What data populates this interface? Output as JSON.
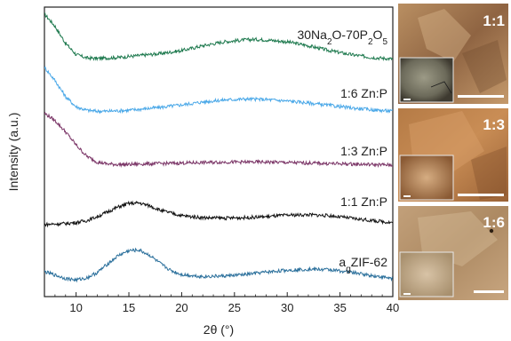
{
  "chart_data": {
    "type": "line",
    "xlabel": "2θ (°)",
    "ylabel": "Intensity (a.u.)",
    "xlim": [
      7,
      40
    ],
    "x_ticks": [
      10,
      15,
      20,
      25,
      30,
      35,
      40
    ],
    "y_ticks_shown": false,
    "grid": false,
    "legend": "none (labels printed next to each curve, right side)",
    "series": [
      {
        "name": "30Na2O-70P2O5",
        "color": "#1f7a4f",
        "offset": 4,
        "x": [
          7,
          8,
          9,
          10,
          11,
          12,
          13,
          14,
          15,
          16,
          18,
          20,
          22,
          24,
          25,
          26,
          27,
          28,
          30,
          32,
          34,
          36,
          38,
          40
        ],
        "y": [
          0.95,
          0.7,
          0.35,
          0.12,
          0.05,
          0.04,
          0.05,
          0.06,
          0.08,
          0.1,
          0.14,
          0.2,
          0.3,
          0.38,
          0.4,
          0.42,
          0.43,
          0.42,
          0.38,
          0.3,
          0.2,
          0.12,
          0.06,
          0.03
        ],
        "label_parts": [
          "30Na",
          "2",
          "O-70P",
          "2",
          "O",
          "5"
        ]
      },
      {
        "name": "1:6 Zn:P",
        "color": "#4aa8e8",
        "offset": 3,
        "x": [
          7,
          8,
          9,
          10,
          11,
          12,
          13,
          14,
          15,
          16,
          18,
          20,
          22,
          24,
          26,
          28,
          30,
          32,
          34,
          36,
          38,
          40
        ],
        "y": [
          0.95,
          0.68,
          0.35,
          0.14,
          0.07,
          0.05,
          0.05,
          0.06,
          0.07,
          0.09,
          0.13,
          0.18,
          0.24,
          0.28,
          0.3,
          0.29,
          0.26,
          0.22,
          0.17,
          0.12,
          0.08,
          0.05
        ],
        "label": "1:6 Zn:P"
      },
      {
        "name": "1:3 Zn:P",
        "color": "#7a3466",
        "offset": 2,
        "x": [
          7,
          8,
          9,
          10,
          11,
          12,
          13,
          14,
          15,
          16,
          18,
          20,
          22,
          24,
          26,
          28,
          30,
          32,
          34,
          36,
          38,
          40
        ],
        "y": [
          1.1,
          0.95,
          0.72,
          0.45,
          0.22,
          0.1,
          0.06,
          0.05,
          0.05,
          0.06,
          0.07,
          0.08,
          0.09,
          0.1,
          0.1,
          0.1,
          0.09,
          0.08,
          0.07,
          0.06,
          0.05,
          0.04
        ],
        "label": "1:3 Zn:P"
      },
      {
        "name": "1:1 Zn:P",
        "color": "#111111",
        "offset": 1,
        "x": [
          7,
          8,
          9,
          10,
          11,
          12,
          13,
          14,
          15,
          16,
          17,
          18,
          20,
          22,
          24,
          26,
          28,
          30,
          32,
          34,
          36,
          38,
          40
        ],
        "y": [
          0.04,
          0.05,
          0.06,
          0.08,
          0.12,
          0.2,
          0.3,
          0.4,
          0.47,
          0.48,
          0.42,
          0.33,
          0.22,
          0.18,
          0.17,
          0.18,
          0.2,
          0.23,
          0.24,
          0.22,
          0.17,
          0.12,
          0.08
        ],
        "label": "1:1 Zn:P"
      },
      {
        "name": "agZIF-62",
        "color": "#2a6f9b",
        "offset": 0,
        "x": [
          7,
          8,
          9,
          10,
          11,
          12,
          13,
          14,
          15,
          16,
          17,
          18,
          19,
          20,
          22,
          24,
          26,
          28,
          30,
          32,
          34,
          36,
          38,
          40
        ],
        "y": [
          0.22,
          0.15,
          0.08,
          0.05,
          0.09,
          0.2,
          0.38,
          0.55,
          0.65,
          0.66,
          0.55,
          0.38,
          0.24,
          0.16,
          0.12,
          0.13,
          0.16,
          0.21,
          0.25,
          0.27,
          0.26,
          0.21,
          0.14,
          0.08
        ],
        "label_parts": [
          "a",
          "g",
          "ZIF-62"
        ]
      }
    ],
    "photo_panels": [
      {
        "label": "1:1"
      },
      {
        "label": "1:3"
      },
      {
        "label": "1:6"
      }
    ]
  }
}
